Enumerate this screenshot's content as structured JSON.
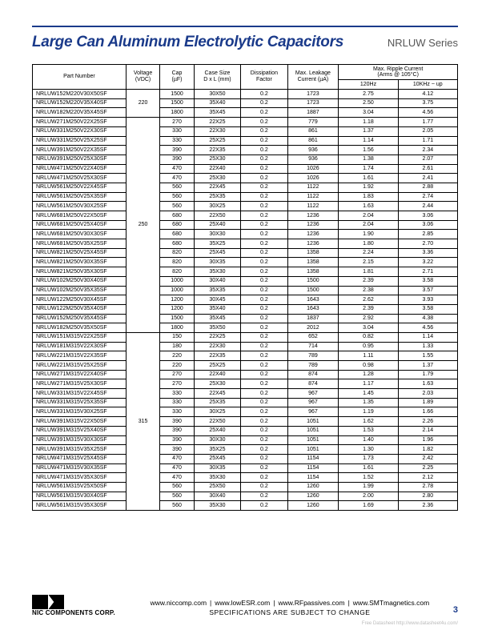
{
  "header": {
    "title": "Large Can Aluminum Electrolytic Capacitors",
    "series": "NRLUW Series"
  },
  "table": {
    "columns": {
      "part": "Part Number",
      "voltage": "Voltage\n(VDC)",
      "cap": "Cap\n(µF)",
      "case": "Case Size\nD x L (mm)",
      "diss": "Dissipation\nFactor",
      "leak": "Max. Leakage\nCurrent (µA)",
      "ripple_group": "Max. Ripple Current\n(Arms @ 105°C)",
      "r1": "120Hz",
      "r2": "10KHz ~ up"
    },
    "groups": [
      {
        "voltage": "220",
        "rows": [
          [
            "NRLUW152M220V30X50SF",
            "1500",
            "30X50",
            "0.2",
            "1723",
            "2.75",
            "4.12"
          ],
          [
            "NRLUW152M220V35X40SF",
            "1500",
            "35X40",
            "0.2",
            "1723",
            "2.50",
            "3.75"
          ],
          [
            "NRLUW182M220V35X45SF",
            "1800",
            "35X45",
            "0.2",
            "1887",
            "3.04",
            "4.56"
          ]
        ]
      },
      {
        "voltage": "250",
        "rows": [
          [
            "NRLUW271M250V22X25SF",
            "270",
            "22X25",
            "0.2",
            "779",
            "1.18",
            "1.77"
          ],
          [
            "NRLUW331M250V22X30SF",
            "330",
            "22X30",
            "0.2",
            "861",
            "1.37",
            "2.05"
          ],
          [
            "NRLUW331M250V25X25SF",
            "330",
            "25X25",
            "0.2",
            "861",
            "1.14",
            "1.71"
          ],
          [
            "NRLUW391M250V22X35SF",
            "390",
            "22X35",
            "0.2",
            "936",
            "1.56",
            "2.34"
          ],
          [
            "NRLUW391M250V25X30SF",
            "390",
            "25X30",
            "0.2",
            "936",
            "1.38",
            "2.07"
          ],
          [
            "NRLUW471M250V22X40SF",
            "470",
            "22X40",
            "0.2",
            "1026",
            "1.74",
            "2.61"
          ],
          [
            "NRLUW471M250V25X30SF",
            "470",
            "25X30",
            "0.2",
            "1026",
            "1.61",
            "2.41"
          ],
          [
            "NRLUW561M250V22X45SF",
            "560",
            "22X45",
            "0.2",
            "1122",
            "1.92",
            "2.88"
          ],
          [
            "NRLUW561M250V25X35SF",
            "560",
            "25X35",
            "0.2",
            "1122",
            "1.83",
            "2.74"
          ],
          [
            "NRLUW561M250V30X25SF",
            "560",
            "30X25",
            "0.2",
            "1122",
            "1.63",
            "2.44"
          ],
          [
            "NRLUW681M250V22X50SF",
            "680",
            "22X50",
            "0.2",
            "1236",
            "2.04",
            "3.06"
          ],
          [
            "NRLUW681M250V25X40SF",
            "680",
            "25X40",
            "0.2",
            "1236",
            "2.04",
            "3.06"
          ],
          [
            "NRLUW681M250V30X30SF",
            "680",
            "30X30",
            "0.2",
            "1236",
            "1.90",
            "2.85"
          ],
          [
            "NRLUW681M250V35X25SF",
            "680",
            "35X25",
            "0.2",
            "1236",
            "1.80",
            "2.70"
          ],
          [
            "NRLUW821M250V25X45SF",
            "820",
            "25X45",
            "0.2",
            "1358",
            "2.24",
            "3.36"
          ],
          [
            "NRLUW821M250V30X35SF",
            "820",
            "30X35",
            "0.2",
            "1358",
            "2.15",
            "3.22"
          ],
          [
            "NRLUW821M250V35X30SF",
            "820",
            "35X30",
            "0.2",
            "1358",
            "1.81",
            "2.71"
          ],
          [
            "NRLUW102M250V30X40SF",
            "1000",
            "30X40",
            "0.2",
            "1500",
            "2.39",
            "3.58"
          ],
          [
            "NRLUW102M250V35X35SF",
            "1000",
            "35X35",
            "0.2",
            "1500",
            "2.38",
            "3.57"
          ],
          [
            "NRLUW122M250V30X45SF",
            "1200",
            "30X45",
            "0.2",
            "1643",
            "2.62",
            "3.93"
          ],
          [
            "NRLUW122M250V35X40SF",
            "1200",
            "35X40",
            "0.2",
            "1643",
            "2.39",
            "3.58"
          ],
          [
            "NRLUW152M250V35X45SF",
            "1500",
            "35X45",
            "0.2",
            "1837",
            "2.92",
            "4.38"
          ],
          [
            "NRLUW182M250V35X50SF",
            "1800",
            "35X50",
            "0.2",
            "2012",
            "3.04",
            "4.56"
          ]
        ]
      },
      {
        "voltage": "315",
        "rows": [
          [
            "NRLUW151M315V22X25SF",
            "150",
            "22X25",
            "0.2",
            "652",
            "0.82",
            "1.14"
          ],
          [
            "NRLUW181M315V22X30SF",
            "180",
            "22X30",
            "0.2",
            "714",
            "0.95",
            "1.33"
          ],
          [
            "NRLUW221M315V22X35SF",
            "220",
            "22X35",
            "0.2",
            "789",
            "1.11",
            "1.55"
          ],
          [
            "NRLUW221M315V25X25SF",
            "220",
            "25X25",
            "0.2",
            "789",
            "0.98",
            "1.37"
          ],
          [
            "NRLUW271M315V22X40SF",
            "270",
            "22X40",
            "0.2",
            "874",
            "1.28",
            "1.79"
          ],
          [
            "NRLUW271M315V25X30SF",
            "270",
            "25X30",
            "0.2",
            "874",
            "1.17",
            "1.63"
          ],
          [
            "NRLUW331M315V22X45SF",
            "330",
            "22X45",
            "0.2",
            "967",
            "1.45",
            "2.03"
          ],
          [
            "NRLUW331M315V25X35SF",
            "330",
            "25X35",
            "0.2",
            "967",
            "1.35",
            "1.89"
          ],
          [
            "NRLUW331M315V30X25SF",
            "330",
            "30X25",
            "0.2",
            "967",
            "1.19",
            "1.66"
          ],
          [
            "NRLUW391M315V22X50SF",
            "390",
            "22X50",
            "0.2",
            "1051",
            "1.62",
            "2.26"
          ],
          [
            "NRLUW391M315V25X40SF",
            "390",
            "25X40",
            "0.2",
            "1051",
            "1.53",
            "2.14"
          ],
          [
            "NRLUW391M315V30X30SF",
            "390",
            "30X30",
            "0.2",
            "1051",
            "1.40",
            "1.96"
          ],
          [
            "NRLUW391M315V35X25SF",
            "390",
            "35X25",
            "0.2",
            "1051",
            "1.30",
            "1.82"
          ],
          [
            "NRLUW471M315V25X45SF",
            "470",
            "25X45",
            "0.2",
            "1154",
            "1.73",
            "2.42"
          ],
          [
            "NRLUW471M315V30X35SF",
            "470",
            "30X35",
            "0.2",
            "1154",
            "1.61",
            "2.25"
          ],
          [
            "NRLUW471M315V35X30SF",
            "470",
            "35X30",
            "0.2",
            "1154",
            "1.52",
            "2.12"
          ],
          [
            "NRLUW561M315V25X50SF",
            "560",
            "25X50",
            "0.2",
            "1260",
            "1.99",
            "2.78"
          ],
          [
            "NRLUW561M315V30X40SF",
            "560",
            "30X40",
            "0.2",
            "1260",
            "2.00",
            "2.80"
          ],
          [
            "NRLUW561M315V35X30SF",
            "560",
            "35X30",
            "0.2",
            "1260",
            "1.69",
            "2.36"
          ]
        ]
      }
    ]
  },
  "footer": {
    "corp": "NIC COMPONENTS CORP.",
    "links": [
      "www.niccomp.com",
      "www.lowESR.com",
      "www.RFpassives.com",
      "www.SMTmagnetics.com"
    ],
    "note": "SPECIFICATIONS ARE SUBJECT TO CHANGE",
    "page": "3",
    "watermark": "Free Datasheet http://www.datasheet4u.com/"
  }
}
